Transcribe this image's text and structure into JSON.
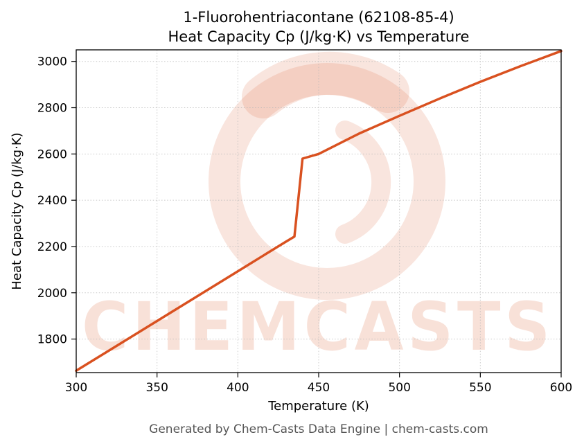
{
  "header": {
    "title_line1": "1-Fluorohentriacontane (62108-85-4)",
    "title_line2": "Heat Capacity Cp (J/kg·K) vs Temperature"
  },
  "footer": {
    "text": "Generated by Chem-Casts Data Engine | chem-casts.com"
  },
  "watermark": {
    "text": "CHEMCASTS",
    "logo": "brush-ring-logo",
    "color": "#d95120"
  },
  "chart_data": {
    "type": "line",
    "title": "1-Fluorohentriacontane (62108-85-4)",
    "subtitle": "Heat Capacity Cp (J/kg·K) vs Temperature",
    "xlabel": "Temperature (K)",
    "ylabel": "Heat Capacity Cp (J/kg·K)",
    "xlim": [
      300,
      600
    ],
    "ylim": [
      1655,
      3050
    ],
    "xticks": [
      300,
      350,
      400,
      450,
      500,
      550,
      600
    ],
    "yticks": [
      1800,
      2000,
      2200,
      2400,
      2600,
      2800,
      3000
    ],
    "grid": true,
    "legend": "none",
    "line_color": "#d95120",
    "line_width": 3.5,
    "series": [
      {
        "name": "Heat Capacity Cp",
        "x": [
          300,
          350,
          400,
          430,
          435,
          440,
          450,
          475,
          500,
          525,
          550,
          575,
          600
        ],
        "y": [
          1663,
          1878,
          2093,
          2222,
          2243,
          2580,
          2600,
          2688,
          2765,
          2840,
          2912,
          2980,
          3045
        ]
      }
    ],
    "annotations": {
      "phase_transition": "step increase in Cp between 435 K and 440 K"
    }
  }
}
